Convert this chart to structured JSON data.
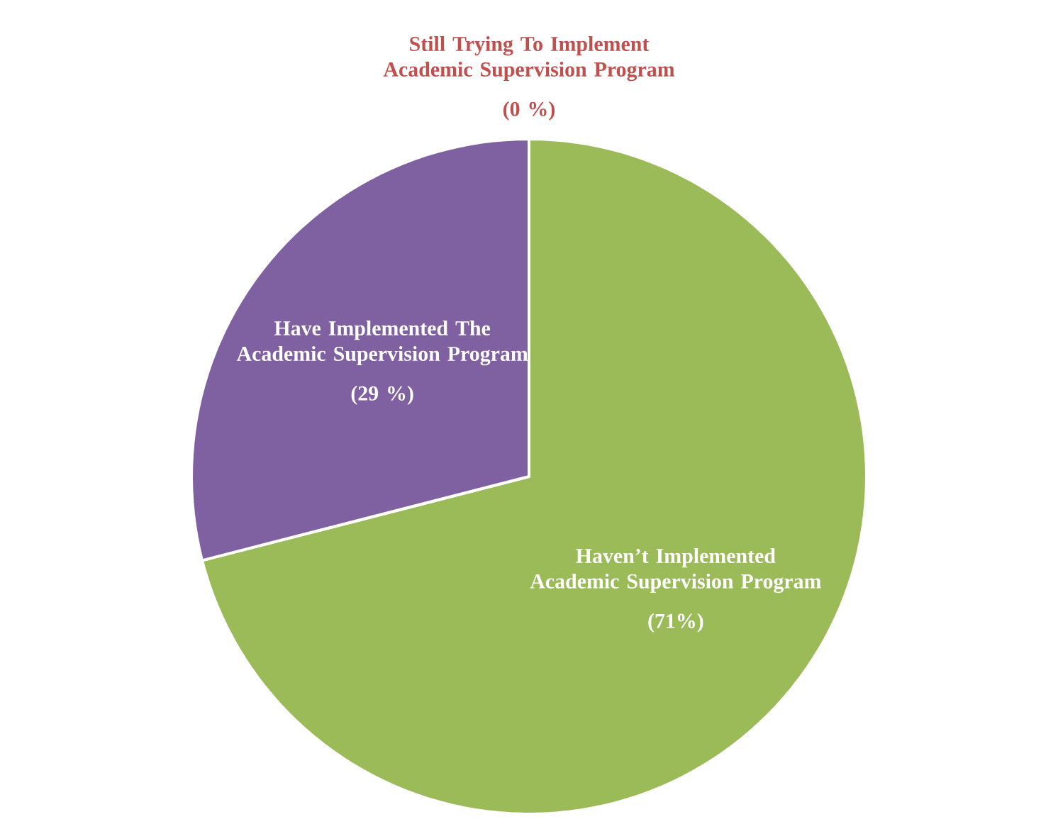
{
  "chart_data": {
    "type": "pie",
    "categories": [
      "Still Trying To Implement Academic Supervision Program",
      "Haven’t Implemented Academic Supervision Program",
      "Have Implemented The Academic Supervision Program"
    ],
    "values": [
      0,
      71,
      29
    ],
    "value_labels": [
      "(0 %)",
      "(71%)",
      "(29 %)"
    ],
    "colors": [
      "#c0504d",
      "#9bbb59",
      "#7f60a0"
    ]
  }
}
